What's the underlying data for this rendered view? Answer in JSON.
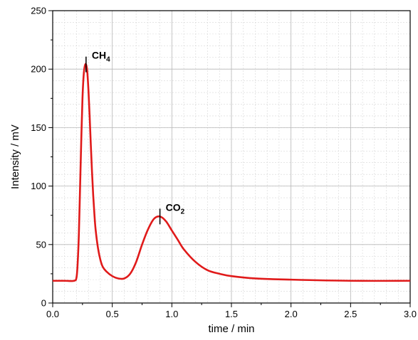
{
  "chart_data": {
    "type": "line",
    "title": "",
    "xlabel": "time / min",
    "ylabel": "Intensity / mV",
    "xlim": [
      0.0,
      3.0
    ],
    "ylim": [
      0,
      250
    ],
    "x_ticks": [
      "0.0",
      "0.5",
      "1.0",
      "1.5",
      "2.0",
      "2.5",
      "3.0"
    ],
    "y_ticks": [
      "0",
      "50",
      "100",
      "150",
      "200",
      "250"
    ],
    "grid": true,
    "line_color": "#e01a1a",
    "series": [
      {
        "x": [
          0.0,
          0.1,
          0.18,
          0.2,
          0.21,
          0.22,
          0.23,
          0.24,
          0.25,
          0.26,
          0.27,
          0.28,
          0.29,
          0.3,
          0.31,
          0.32,
          0.33,
          0.34,
          0.35,
          0.36,
          0.38,
          0.4,
          0.42,
          0.45,
          0.5,
          0.55,
          0.6,
          0.65,
          0.7,
          0.75,
          0.8,
          0.85,
          0.9,
          0.95,
          1.0,
          1.05,
          1.1,
          1.2,
          1.3,
          1.4,
          1.5,
          1.7,
          2.0,
          2.5,
          3.0
        ],
        "y": [
          19,
          19,
          19,
          22,
          35,
          60,
          100,
          140,
          175,
          195,
          203,
          204,
          198,
          182,
          160,
          135,
          112,
          92,
          76,
          63,
          47,
          37,
          31,
          27,
          23,
          21,
          21,
          25,
          35,
          50,
          63,
          72,
          74,
          70,
          62,
          54,
          46,
          35,
          28,
          25,
          23,
          21,
          20,
          19,
          19
        ]
      }
    ],
    "annotations": [
      {
        "text": "CH",
        "sub": "4",
        "x": 0.28,
        "y": 204
      },
      {
        "text": "CO",
        "sub": "2",
        "x": 0.9,
        "y": 74
      }
    ]
  }
}
